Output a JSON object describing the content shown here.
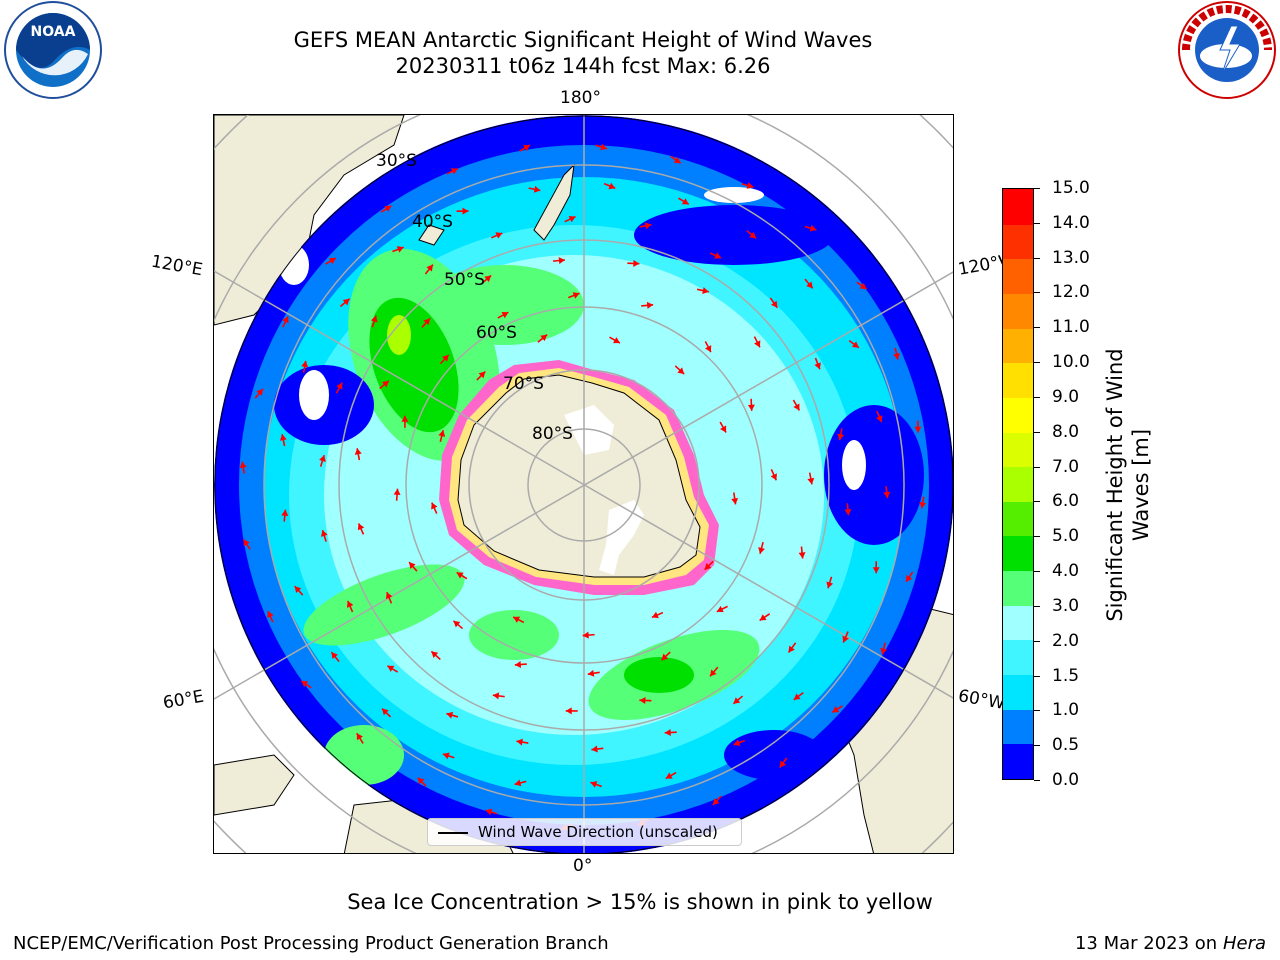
{
  "header": {
    "title": "GEFS MEAN Antarctic Significant Height of Wind Waves",
    "subtitle": "20230311 t06z 144h fcst   Max: 6.26"
  },
  "logos": {
    "left_icon": "noaa-logo-icon",
    "left_text": "NOAA",
    "right_icon": "national-weather-service-logo-icon",
    "right_text": "NATIONAL WEATHER SERVICE"
  },
  "map": {
    "projection": "south-polar-stereographic",
    "longitude_labels": {
      "top": "180°",
      "bottom": "0°",
      "upper_left": "120°E",
      "upper_right": "120°W",
      "lower_left": "60°E",
      "lower_right": "60°W"
    },
    "latitude_labels": [
      "30°S",
      "40°S",
      "50°S",
      "60°S",
      "70°S",
      "80°S"
    ],
    "colors": {
      "land": "#efecd8",
      "ice_pink": "#ff66cc",
      "ice_yellow": "#ffe680",
      "arrow": "#ff0000",
      "grid": "#aaaaaa"
    }
  },
  "colorbar": {
    "label": "Significant Height of Wind Waves [m]",
    "label_line1": "Significant Height of Wind",
    "label_line2": "Waves [m]",
    "ticks": [
      "0.0",
      "0.5",
      "1.0",
      "1.5",
      "2.0",
      "3.0",
      "4.0",
      "5.0",
      "6.0",
      "7.0",
      "8.0",
      "9.0",
      "10.0",
      "11.0",
      "12.0",
      "13.0",
      "14.0",
      "15.0"
    ],
    "colors": [
      "#0000ff",
      "#0080ff",
      "#00e5ff",
      "#40f5ff",
      "#a0ffff",
      "#55ff77",
      "#00e000",
      "#55ee00",
      "#aaff00",
      "#dbff00",
      "#ffff00",
      "#ffe000",
      "#ffb000",
      "#ff8800",
      "#ff6000",
      "#ff3000",
      "#ff0000"
    ]
  },
  "legend": {
    "text": "Wind Wave Direction (unscaled)"
  },
  "ice_note": "Sea Ice Concentration > 15% is shown in pink to yellow",
  "footer": {
    "left": "NCEP/EMC/Verification Post Processing Product Generation Branch",
    "right_date": "13 Mar 2023 on",
    "right_host": "Hera"
  }
}
